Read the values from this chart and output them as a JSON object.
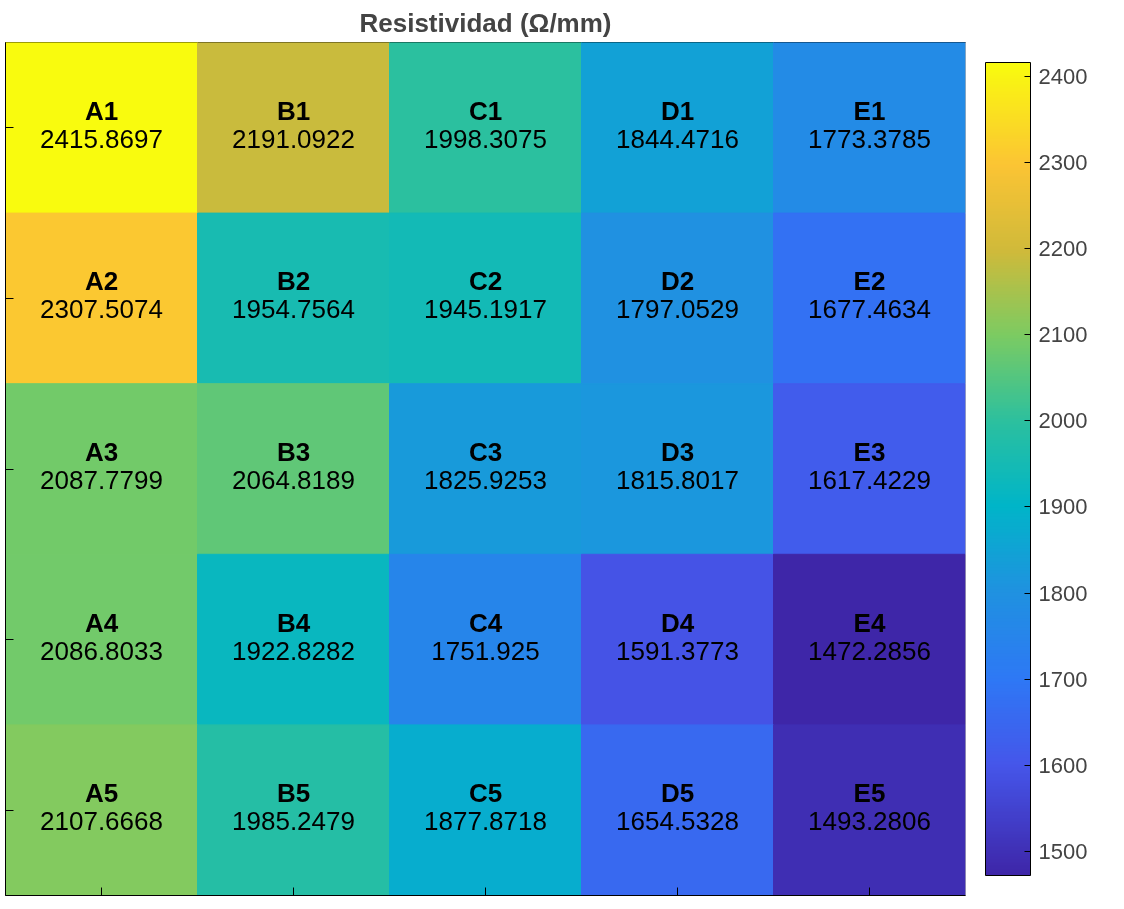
{
  "chart_data": {
    "type": "heatmap",
    "title": "Resistividad (Ω/mm)",
    "categories": [
      null,
      null,
      null,
      null,
      null
    ],
    "y_categories": [
      null,
      null,
      null,
      null,
      null
    ],
    "cells": [
      [
        2415.8697,
        2191.0922,
        1998.3075,
        1844.4716,
        1773.3785
      ],
      [
        2307.5074,
        1954.7564,
        1945.1917,
        1797.0529,
        1677.4634
      ],
      [
        2087.7799,
        2064.8189,
        1825.9253,
        1815.8017,
        1617.4229
      ],
      [
        2086.8033,
        1922.8282,
        1751.925,
        1591.3773,
        1472.2856
      ],
      [
        2107.6668,
        1985.2479,
        1877.8718,
        1654.5328,
        1493.2806
      ]
    ],
    "cell_labels": [
      [
        "A1\n2415.8697",
        "B1\n2191.0922",
        "C1\n1998.3075",
        "D1\n1844.4716",
        "E1\n1773.3785"
      ],
      [
        "A2\n2307.5074",
        "B2\n1954.7564",
        "C2\n1945.1917",
        "D2\n1797.0529",
        "E2\n1677.4634"
      ],
      [
        "A3\n2087.7799",
        "B3\n2064.8189",
        "C3\n1825.9253",
        "D3\n1815.8017",
        "E3\n1617.4229"
      ],
      [
        "A4\n2086.8033",
        "B4\n1922.8282",
        "C4\n1751.925",
        "D4\n1591.3773",
        "E4\n1472.2856"
      ],
      [
        "A5\n2107.6668",
        "B5\n1985.2479",
        "C5\n1877.8718",
        "D5\n1654.5328",
        "E5\n1493.2806"
      ]
    ],
    "clim": [
      1472.2856,
      2415.8697
    ],
    "cticks": [
      1500,
      1600,
      1700,
      1800,
      1900,
      2000,
      2100,
      2200,
      2300,
      2400
    ]
  }
}
